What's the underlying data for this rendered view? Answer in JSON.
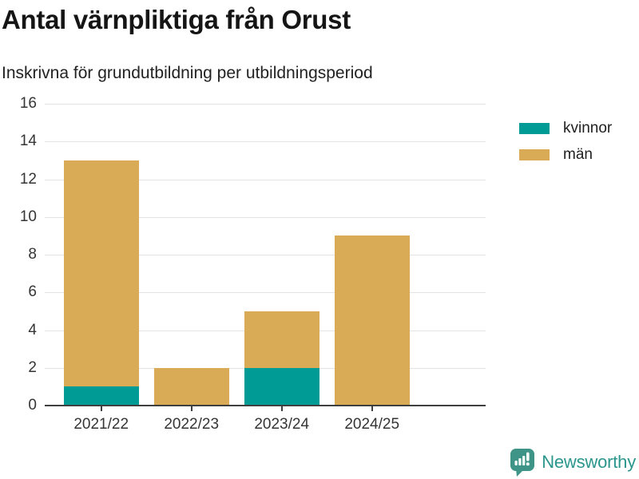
{
  "title": "Antal värnpliktiga från Orust",
  "subtitle": "Inskrivna för grundutbildning per utbildningsperiod",
  "chart_data": {
    "type": "bar",
    "stacked": true,
    "title": "Antal värnpliktiga från Orust",
    "subtitle": "Inskrivna för grundutbildning per utbildningsperiod",
    "categories": [
      "2021/22",
      "2022/23",
      "2023/24",
      "2024/25"
    ],
    "series": [
      {
        "name": "kvinnor",
        "color": "#009B94",
        "values": [
          1,
          0,
          2,
          0
        ]
      },
      {
        "name": "män",
        "color": "#D9AB57",
        "values": [
          12,
          2,
          3,
          9
        ]
      }
    ],
    "totals": [
      13,
      2,
      5,
      9
    ],
    "xlabel": "",
    "ylabel": "",
    "ylim": [
      0,
      16
    ],
    "yticks": [
      0,
      2,
      4,
      6,
      8,
      10,
      12,
      14,
      16
    ],
    "grid": true,
    "grid_color": "#E3E3E3",
    "axis_color": "#3F3F3F",
    "legend_position": "top-right"
  },
  "legend": {
    "items": [
      {
        "label": "kvinnor",
        "color": "#009B94"
      },
      {
        "label": "män",
        "color": "#D9AB57"
      }
    ]
  },
  "footer": {
    "brand": "Newsworthy",
    "brand_color": "#2B968B",
    "logo_icon": "bar-chart-speech-bubble",
    "logo_color": "#3D9487"
  }
}
